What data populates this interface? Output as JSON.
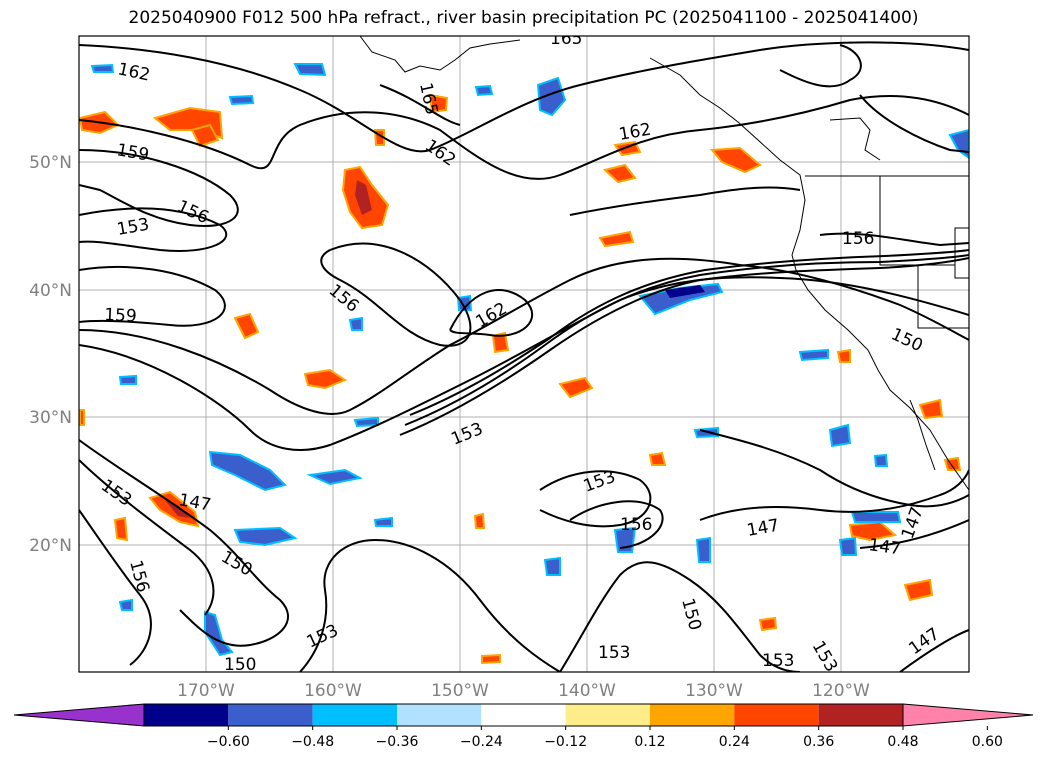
{
  "title": "2025040900 F012 500 hPa refract., river basin precipitation PC (2025041100 - 2025041400)",
  "lat_labels": [
    "50°N",
    "40°N",
    "30°N",
    "20°N"
  ],
  "lon_labels": [
    "170°W",
    "160°W",
    "150°W",
    "140°W",
    "130°W",
    "120°W"
  ],
  "contour_labels": [
    "162",
    "165",
    "159",
    "156",
    "153",
    "159",
    "156",
    "162",
    "165",
    "162",
    "162",
    "156",
    "150",
    "153",
    "147",
    "153",
    "156",
    "150",
    "153",
    "147",
    "147",
    "147",
    "150",
    "153",
    "150",
    "153",
    "147",
    "156",
    "153",
    "153"
  ],
  "colorbar": {
    "colors": [
      "#9932cc",
      "#00008b",
      "#3a5fcd",
      "#00bfff",
      "#b0e2ff",
      "#ffffff",
      "#ffec8b",
      "#ffa500",
      "#ff4500",
      "#b22222",
      "#ff82ab"
    ],
    "ticks": [
      "−0.60",
      "−0.48",
      "−0.36",
      "−0.24",
      "−0.12",
      "0.12",
      "0.24",
      "0.36",
      "0.48",
      "0.60"
    ]
  }
}
